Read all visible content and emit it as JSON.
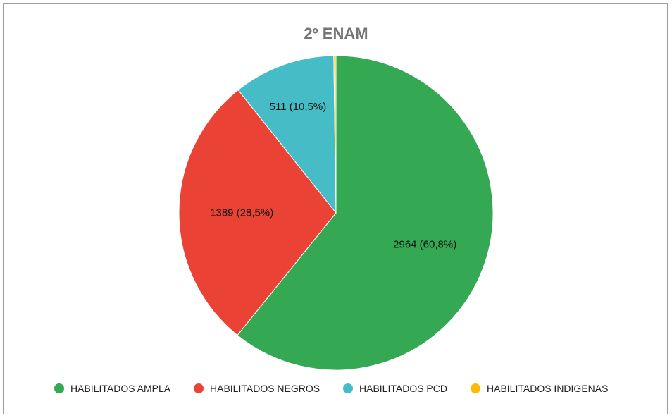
{
  "chart_data": {
    "type": "pie",
    "title": "2º ENAM",
    "start_angle": "top, clockwise",
    "slices": [
      {
        "label": "HABILITADOS AMPLA",
        "value": 2964,
        "data_label": "2964 (60,8%)",
        "color": "#34a853"
      },
      {
        "label": "HABILITADOS NEGROS",
        "value": 1389,
        "data_label": "1389 (28,5%)",
        "color": "#ea4335"
      },
      {
        "label": "HABILITADOS PCD",
        "value": 511,
        "data_label": "511 (10,5%)",
        "color": "#46bdc6"
      },
      {
        "label": "HABILITADOS INDIGENAS",
        "value": 11,
        "data_label": "",
        "color": "#fbbc04"
      }
    ],
    "legend_position": "bottom"
  }
}
